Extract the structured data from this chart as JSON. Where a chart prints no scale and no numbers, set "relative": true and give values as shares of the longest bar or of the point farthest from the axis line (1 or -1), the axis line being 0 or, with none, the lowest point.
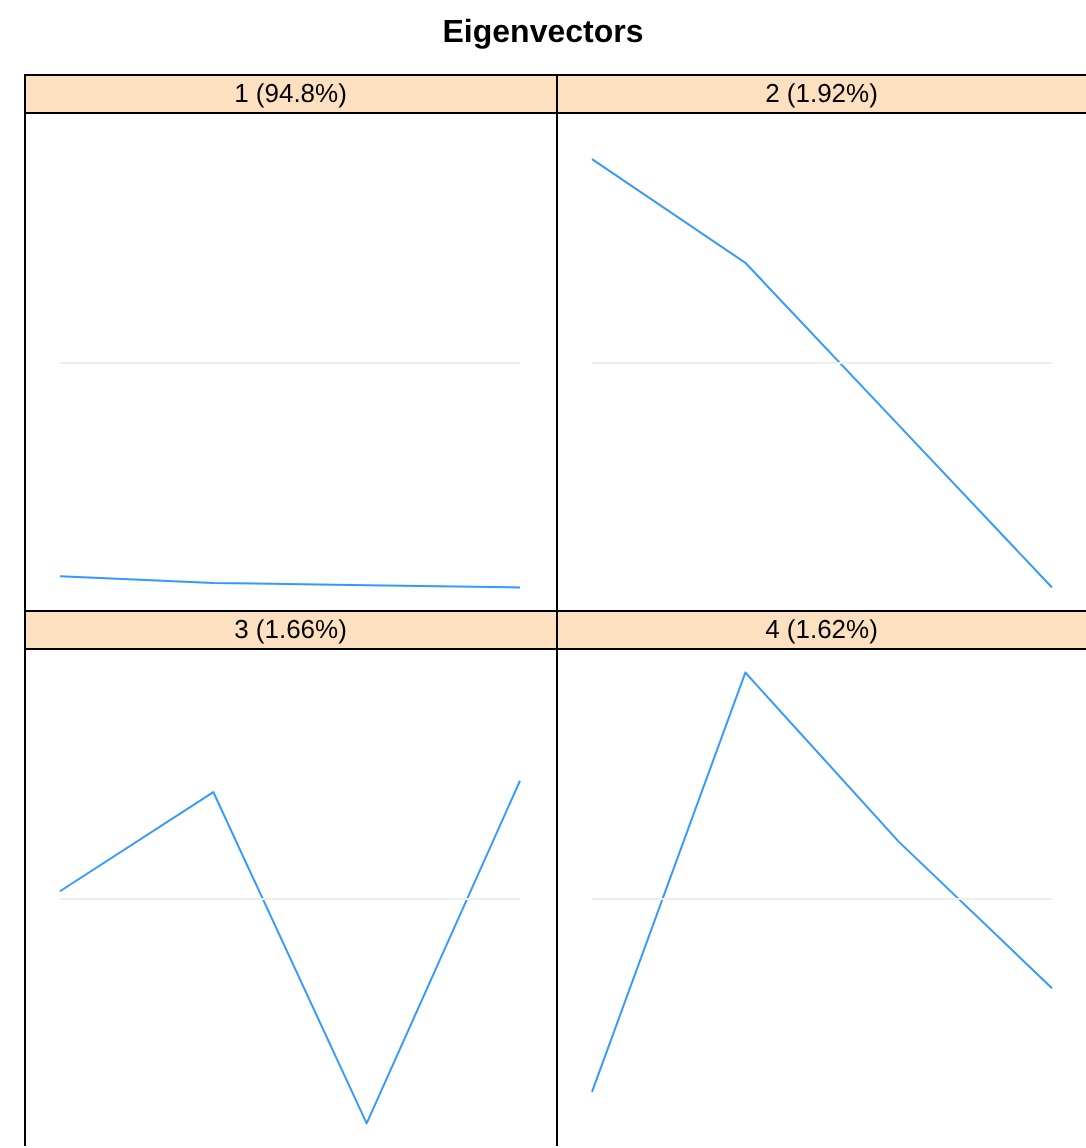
{
  "chart_data": [
    {
      "type": "line",
      "title": "Eigenvectors",
      "subtitle": "1 (94.8%)",
      "categories": [
        null,
        null,
        null,
        null
      ],
      "relative": true,
      "marker": "none",
      "ref_lines": [
        {
          "axis": "y",
          "value": 0,
          "color": "#eeeeee"
        }
      ],
      "series": [
        {
          "color": "#3399ff",
          "values": [
            -0.95,
            -0.98,
            -0.99,
            -1
          ]
        }
      ]
    },
    {
      "type": "line",
      "subtitle": "2 (1.92%)",
      "categories": [
        null,
        null,
        null,
        null
      ],
      "relative": true,
      "marker": "none",
      "ref_lines": [
        {
          "axis": "y",
          "value": 0,
          "color": "#eeeeee"
        }
      ],
      "series": [
        {
          "color": "#3399ff",
          "values": [
            0.9,
            0.44,
            -0.28,
            -1
          ]
        }
      ]
    },
    {
      "type": "line",
      "subtitle": "3 (1.66%)",
      "categories": [
        null,
        null,
        null,
        null
      ],
      "relative": true,
      "marker": "none",
      "ref_lines": [
        {
          "axis": "y",
          "value": 0,
          "color": "#eeeeee"
        }
      ],
      "series": [
        {
          "color": "#3399ff",
          "values": [
            0.03,
            0.47,
            -1,
            0.52
          ]
        }
      ]
    },
    {
      "type": "line",
      "subtitle": "4 (1.62%)",
      "categories": [
        null,
        null,
        null,
        null
      ],
      "relative": true,
      "marker": "none",
      "ref_lines": [
        {
          "axis": "y",
          "value": 0,
          "color": "#eeeeee"
        }
      ],
      "series": [
        {
          "color": "#3399ff",
          "values": [
            -0.86,
            1,
            0.25,
            -0.4
          ]
        }
      ]
    }
  ]
}
